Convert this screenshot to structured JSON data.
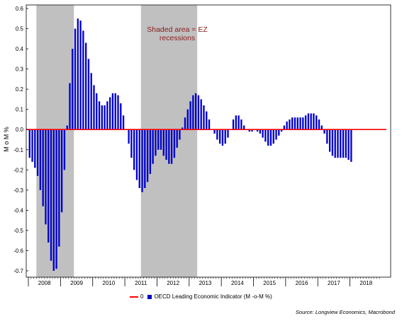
{
  "chart_data": {
    "type": "bar",
    "ylabel": "M o M %",
    "ylim": [
      -0.7,
      0.6
    ],
    "yticks": [
      "0.6",
      "0.5",
      "0.4",
      "0.3",
      "0.2",
      "0.1",
      "0.0",
      "-0.1",
      "-0.2",
      "-0.3",
      "-0.4",
      "-0.5",
      "-0.6",
      "-0.7"
    ],
    "year_labels": [
      "2008",
      "2009",
      "2010",
      "2011",
      "2012",
      "2013",
      "2014",
      "2015",
      "2016",
      "2017",
      "2018"
    ],
    "start": "2008-01",
    "recessions": [
      {
        "start": "2008-04",
        "end": "2009-05"
      },
      {
        "start": "2011-07",
        "end": "2013-03"
      }
    ],
    "annotation": "Shaded area = EZ recessions",
    "series": [
      {
        "name": "0",
        "kind": "line",
        "value": 0.0,
        "color": "#ff0000"
      },
      {
        "name": "OECD Leading  Economic Indicator (M    -o-M %)",
        "kind": "bar",
        "color": "#0000cc",
        "values": [
          -0.14,
          -0.16,
          -0.19,
          -0.23,
          -0.3,
          -0.38,
          -0.47,
          -0.56,
          -0.65,
          -0.7,
          -0.69,
          -0.58,
          -0.41,
          -0.2,
          0.02,
          0.23,
          0.4,
          0.5,
          0.55,
          0.54,
          0.49,
          0.43,
          0.35,
          0.28,
          0.22,
          0.18,
          0.14,
          0.12,
          0.12,
          0.14,
          0.16,
          0.18,
          0.18,
          0.17,
          0.13,
          0.07,
          0.0,
          -0.07,
          -0.14,
          -0.2,
          -0.25,
          -0.29,
          -0.31,
          -0.29,
          -0.26,
          -0.22,
          -0.17,
          -0.13,
          -0.1,
          -0.1,
          -0.13,
          -0.15,
          -0.17,
          -0.17,
          -0.14,
          -0.09,
          -0.05,
          0.01,
          0.06,
          0.1,
          0.14,
          0.17,
          0.18,
          0.17,
          0.15,
          0.12,
          0.09,
          0.05,
          0.0,
          -0.02,
          -0.05,
          -0.07,
          -0.08,
          -0.07,
          -0.04,
          0.0,
          0.05,
          0.07,
          0.07,
          0.05,
          0.02,
          0.0,
          -0.01,
          -0.01,
          0.0,
          -0.01,
          -0.02,
          -0.04,
          -0.06,
          -0.08,
          -0.08,
          -0.07,
          -0.05,
          -0.03,
          -0.01,
          0.02,
          0.04,
          0.05,
          0.06,
          0.06,
          0.06,
          0.06,
          0.06,
          0.07,
          0.08,
          0.08,
          0.08,
          0.07,
          0.05,
          0.02,
          -0.02,
          -0.07,
          -0.11,
          -0.13,
          -0.14,
          -0.14,
          -0.14,
          -0.14,
          -0.14,
          -0.15,
          -0.16
        ]
      }
    ]
  },
  "legend": {
    "zero_label": "0",
    "indicator_label": "OECD Leading  Economic Indicator (M    -o-M %)"
  },
  "source": "Source: Longview Economics, Macrobond"
}
